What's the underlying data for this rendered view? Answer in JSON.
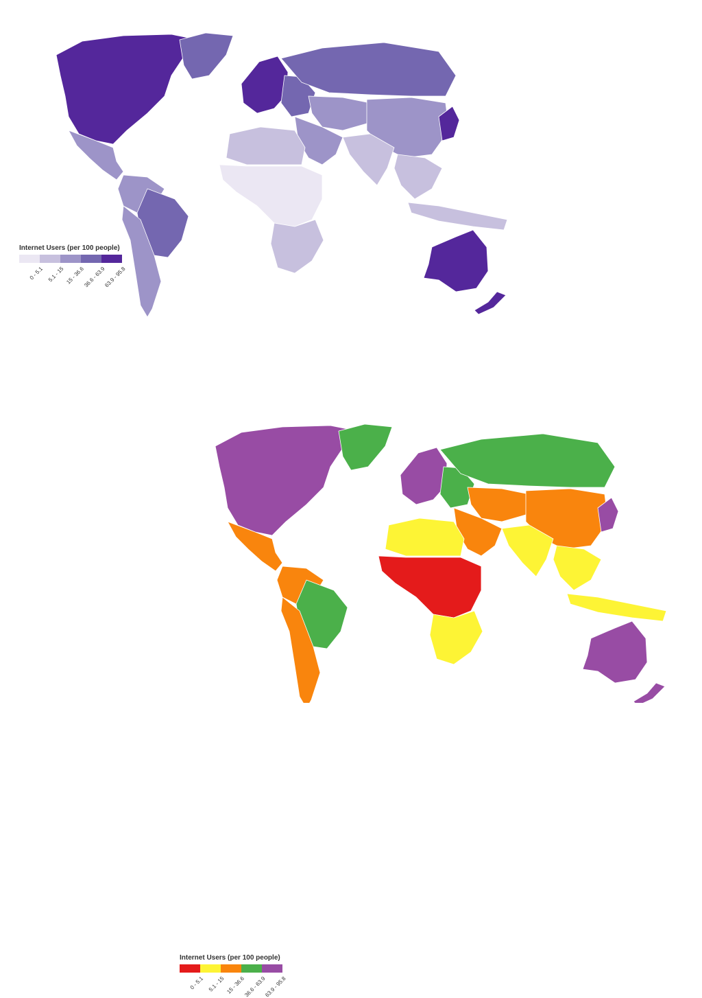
{
  "legend_title": "Internet Users (per 100 people)",
  "bins": [
    "0 - 5.1",
    "5.1 - 15",
    "15 - 36.6",
    "36.6 - 63.9",
    "63.9 - 95.8"
  ],
  "maps": [
    {
      "id": "purple-scale",
      "colors": [
        "#ebe7f3",
        "#c7c0de",
        "#9d94c8",
        "#7467b0",
        "#54279b"
      ],
      "regions": [
        {
          "name": "north-america",
          "bin": 4
        },
        {
          "name": "greenland",
          "bin": 3
        },
        {
          "name": "mexico-central-america",
          "bin": 2
        },
        {
          "name": "south-america-north",
          "bin": 2
        },
        {
          "name": "brazil",
          "bin": 3
        },
        {
          "name": "south-america-south",
          "bin": 2
        },
        {
          "name": "western-europe",
          "bin": 4
        },
        {
          "name": "eastern-europe",
          "bin": 3
        },
        {
          "name": "russia",
          "bin": 3
        },
        {
          "name": "central-asia",
          "bin": 2
        },
        {
          "name": "mongolia-china",
          "bin": 2
        },
        {
          "name": "middle-east",
          "bin": 2
        },
        {
          "name": "north-africa",
          "bin": 1
        },
        {
          "name": "sub-saharan-africa",
          "bin": 0
        },
        {
          "name": "southern-africa",
          "bin": 1
        },
        {
          "name": "south-asia",
          "bin": 1
        },
        {
          "name": "southeast-asia",
          "bin": 1
        },
        {
          "name": "japan-korea",
          "bin": 4
        },
        {
          "name": "indonesia",
          "bin": 1
        },
        {
          "name": "australia",
          "bin": 4
        },
        {
          "name": "new-zealand",
          "bin": 4
        }
      ]
    },
    {
      "id": "rainbow-scale",
      "colors": [
        "#e41b1b",
        "#fdf435",
        "#f9850d",
        "#4bb04a",
        "#984ca4"
      ],
      "regions": [
        {
          "name": "north-america",
          "bin": 4
        },
        {
          "name": "greenland",
          "bin": 3
        },
        {
          "name": "mexico-central-america",
          "bin": 2
        },
        {
          "name": "south-america-north",
          "bin": 2
        },
        {
          "name": "brazil",
          "bin": 3
        },
        {
          "name": "south-america-south",
          "bin": 2
        },
        {
          "name": "western-europe",
          "bin": 4
        },
        {
          "name": "eastern-europe",
          "bin": 3
        },
        {
          "name": "russia",
          "bin": 3
        },
        {
          "name": "central-asia",
          "bin": 2
        },
        {
          "name": "mongolia-china",
          "bin": 2
        },
        {
          "name": "middle-east",
          "bin": 2
        },
        {
          "name": "north-africa",
          "bin": 1
        },
        {
          "name": "sub-saharan-africa",
          "bin": 0
        },
        {
          "name": "southern-africa",
          "bin": 1
        },
        {
          "name": "south-asia",
          "bin": 1
        },
        {
          "name": "southeast-asia",
          "bin": 1
        },
        {
          "name": "japan-korea",
          "bin": 4
        },
        {
          "name": "indonesia",
          "bin": 1
        },
        {
          "name": "australia",
          "bin": 4
        },
        {
          "name": "new-zealand",
          "bin": 4
        }
      ]
    }
  ]
}
